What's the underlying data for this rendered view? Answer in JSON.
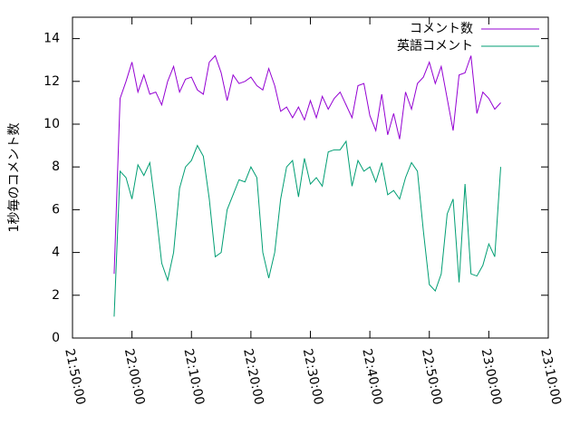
{
  "chart_data": {
    "type": "line",
    "y_label": "1秒毎のコメント数",
    "x": [
      "21:57:00",
      "21:58:00",
      "21:59:00",
      "22:00:00",
      "22:01:00",
      "22:02:00",
      "22:03:00",
      "22:04:00",
      "22:05:00",
      "22:06:00",
      "22:07:00",
      "22:08:00",
      "22:09:00",
      "22:10:00",
      "22:11:00",
      "22:12:00",
      "22:13:00",
      "22:14:00",
      "22:15:00",
      "22:16:00",
      "22:17:00",
      "22:18:00",
      "22:19:00",
      "22:20:00",
      "22:21:00",
      "22:22:00",
      "22:23:00",
      "22:24:00",
      "22:25:00",
      "22:26:00",
      "22:27:00",
      "22:28:00",
      "22:29:00",
      "22:30:00",
      "22:31:00",
      "22:32:00",
      "22:33:00",
      "22:34:00",
      "22:35:00",
      "22:36:00",
      "22:37:00",
      "22:38:00",
      "22:39:00",
      "22:40:00",
      "22:41:00",
      "22:42:00",
      "22:43:00",
      "22:44:00",
      "22:45:00",
      "22:46:00",
      "22:47:00",
      "22:48:00",
      "22:49:00",
      "22:50:00",
      "22:51:00",
      "22:52:00",
      "22:53:00",
      "22:54:00",
      "22:55:00",
      "22:56:00",
      "22:57:00",
      "22:58:00",
      "22:59:00",
      "23:00:00",
      "23:01:00",
      "23:02:00"
    ],
    "series": [
      {
        "name": "コメント数",
        "color": "#9400d3",
        "values": [
          3.0,
          11.2,
          12.0,
          12.9,
          11.5,
          12.3,
          11.4,
          11.5,
          10.9,
          12.0,
          12.7,
          11.5,
          12.1,
          12.2,
          11.6,
          11.4,
          12.9,
          13.2,
          12.4,
          11.1,
          12.3,
          11.9,
          12.0,
          12.2,
          11.8,
          11.6,
          12.6,
          11.8,
          10.6,
          10.8,
          10.3,
          10.8,
          10.2,
          11.1,
          10.3,
          11.3,
          10.7,
          11.2,
          11.5,
          10.9,
          10.3,
          11.8,
          11.9,
          10.4,
          9.7,
          11.4,
          9.5,
          10.5,
          9.3,
          11.5,
          10.7,
          11.9,
          12.2,
          12.9,
          11.9,
          12.7,
          11.2,
          9.7,
          12.3,
          12.4,
          13.2,
          10.5,
          11.5,
          11.2,
          10.7,
          11.0
        ]
      },
      {
        "name": "英語コメント",
        "color": "#009e73",
        "values": [
          1.0,
          7.8,
          7.5,
          6.5,
          8.1,
          7.6,
          8.2,
          6.0,
          3.5,
          2.7,
          4.0,
          7.0,
          8.0,
          8.3,
          9.0,
          8.5,
          6.5,
          3.8,
          4.0,
          6.0,
          6.7,
          7.4,
          7.3,
          8.0,
          7.5,
          4.0,
          2.8,
          4.0,
          6.5,
          8.0,
          8.3,
          6.6,
          8.4,
          7.2,
          7.5,
          7.1,
          8.7,
          8.8,
          8.8,
          9.2,
          7.1,
          8.3,
          7.8,
          8.0,
          7.3,
          8.2,
          6.7,
          6.9,
          6.5,
          7.5,
          8.2,
          7.8,
          5.0,
          2.5,
          2.2,
          3.0,
          5.8,
          6.5,
          2.6,
          7.2,
          3.0,
          2.9,
          3.4,
          4.4,
          3.8,
          8.0
        ]
      }
    ],
    "xlim": [
      "21:50:00",
      "23:10:00"
    ],
    "xticks": [
      "21:50:00",
      "22:00:00",
      "22:10:00",
      "22:20:00",
      "22:30:00",
      "22:40:00",
      "22:50:00",
      "23:00:00",
      "23:10:00"
    ],
    "ylim": [
      0,
      15
    ],
    "yticks": [
      0,
      2,
      4,
      6,
      8,
      10,
      12,
      14
    ],
    "legend": "top-right"
  }
}
